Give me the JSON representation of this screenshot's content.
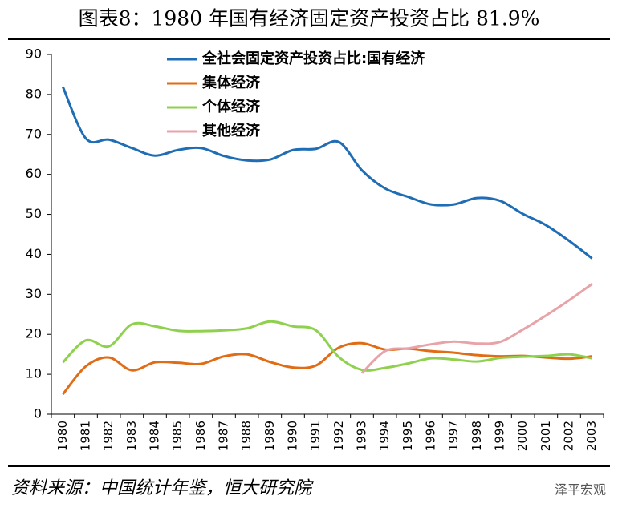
{
  "chart_data": {
    "type": "line",
    "title": "图表8：1980 年国有经济固定资产投资占比 81.9%",
    "source": "资料来源：中国统计年鉴，恒大研究院",
    "watermark": "泽平宏观",
    "categories": [
      "1980",
      "1981",
      "1982",
      "1983",
      "1984",
      "1985",
      "1986",
      "1987",
      "1988",
      "1989",
      "1990",
      "1991",
      "1992",
      "1993",
      "1994",
      "1995",
      "1996",
      "1997",
      "1998",
      "1999",
      "2000",
      "2001",
      "2002",
      "2003"
    ],
    "series": [
      {
        "name": "全社会固定资产投资占比:国有经济",
        "color": "#1f6db5",
        "values": [
          81.9,
          69,
          68.7,
          66.6,
          64.7,
          66.1,
          66.6,
          64.6,
          63.5,
          63.7,
          66.1,
          66.4,
          68.1,
          61,
          56.5,
          54.4,
          52.5,
          52.5,
          54.1,
          53.4,
          50.1,
          47.3,
          43.4,
          39
        ]
      },
      {
        "name": "集体经济",
        "color": "#e06c16",
        "values": [
          5,
          12,
          14.2,
          11,
          13,
          12.9,
          12.6,
          14.5,
          15,
          13.1,
          11.7,
          12.2,
          16.7,
          17.8,
          16.2,
          16.4,
          15.8,
          15.4,
          14.8,
          14.5,
          14.6,
          14.2,
          13.9,
          14.5
        ]
      },
      {
        "name": "个体经济",
        "color": "#8fd14f",
        "values": [
          13,
          18.5,
          17,
          22.5,
          22,
          20.9,
          20.8,
          21,
          21.5,
          23.2,
          22,
          21,
          14.3,
          11.1,
          11.6,
          12.7,
          14,
          13.7,
          13.2,
          14.1,
          14.4,
          14.6,
          15,
          14
        ]
      },
      {
        "name": "其他经济",
        "color": "#e8a3a8",
        "values": [
          null,
          null,
          null,
          null,
          null,
          null,
          null,
          null,
          null,
          null,
          null,
          null,
          null,
          10.3,
          15.8,
          16.5,
          17.5,
          18.2,
          17.7,
          18.1,
          21.2,
          24.7,
          28.5,
          32.6
        ]
      }
    ],
    "ylim": [
      0,
      90
    ],
    "yticks": [
      0,
      10,
      20,
      30,
      40,
      50,
      60,
      70,
      80,
      90
    ],
    "grid": false,
    "legend": "top-left"
  }
}
